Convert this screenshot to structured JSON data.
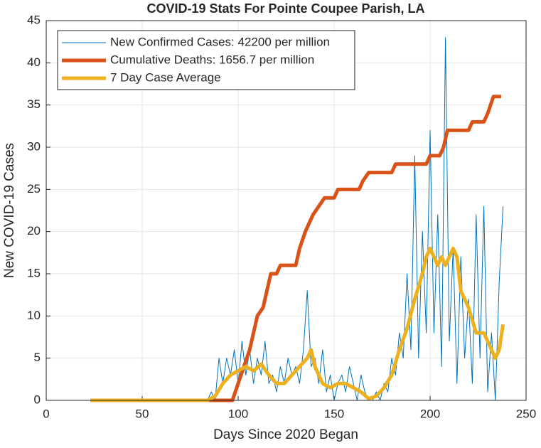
{
  "chart_data": {
    "type": "line",
    "title": "COVID-19 Stats For Pointe Coupee Parish, LA",
    "x_label": "Days Since 2020 Began",
    "y_label": "New COVID-19 Cases",
    "xlim": [
      0,
      250
    ],
    "xticks": [
      0,
      50,
      100,
      150,
      200,
      250
    ],
    "ylim": [
      0,
      45
    ],
    "yticks": [
      0,
      5,
      10,
      15,
      20,
      25,
      30,
      35,
      40,
      45
    ],
    "grid": true,
    "legend": "upper left",
    "series": [
      {
        "name": "New Confirmed Cases: 42200 per million",
        "color": "#0072bd",
        "width": 1,
        "x": [
          23,
          84,
          86,
          88,
          90,
          92,
          94,
          96,
          98,
          100,
          102,
          104,
          106,
          108,
          110,
          112,
          114,
          116,
          118,
          120,
          122,
          124,
          126,
          128,
          130,
          132,
          134,
          136,
          138,
          140,
          142,
          144,
          146,
          148,
          150,
          152,
          154,
          156,
          158,
          160,
          162,
          164,
          166,
          168,
          170,
          172,
          174,
          176,
          178,
          180,
          182,
          184,
          186,
          188,
          190,
          192,
          194,
          196,
          198,
          200,
          202,
          204,
          206,
          208,
          210,
          212,
          214,
          216,
          218,
          220,
          222,
          224,
          226,
          228,
          230,
          232,
          234,
          236,
          238
        ],
        "values": [
          0,
          0,
          1,
          0,
          5,
          2,
          5,
          3,
          6,
          2,
          7,
          3,
          6,
          2,
          5,
          3,
          7,
          2,
          3,
          1,
          4,
          2,
          5,
          3,
          4,
          2,
          6,
          13,
          4,
          5,
          2,
          6,
          1,
          3,
          0,
          2,
          3,
          1,
          4,
          2,
          0,
          3,
          1,
          0,
          0,
          1,
          0,
          2,
          1,
          5,
          3,
          8,
          5,
          15,
          6,
          29,
          5,
          20,
          8,
          32,
          8,
          22,
          4,
          43,
          7,
          18,
          2,
          17,
          5,
          12,
          2,
          22,
          5,
          23,
          1,
          8,
          0,
          14,
          23
        ]
      },
      {
        "name": "Cumulative Deaths: 1656.7 per million",
        "color": "#d95319",
        "width": 5,
        "x": [
          23,
          97,
          100,
          103,
          106,
          108,
          110,
          113,
          115,
          117,
          120,
          122,
          130,
          132,
          135,
          137,
          139,
          145,
          150,
          152,
          163,
          165,
          168,
          180,
          182,
          198,
          200,
          205,
          207,
          209,
          220,
          222,
          228,
          230,
          233,
          237
        ],
        "values": [
          0,
          0,
          2,
          4,
          6,
          8,
          10,
          11,
          13,
          15,
          15,
          16,
          16,
          18,
          20,
          21,
          22,
          24,
          24,
          25,
          25,
          26,
          27,
          27,
          28,
          28,
          29,
          29,
          30,
          32,
          32,
          33,
          33,
          34,
          36,
          36
        ]
      },
      {
        "name": "7 Day Case Average",
        "color": "#edb120",
        "width": 5,
        "x": [
          23,
          84,
          88,
          92,
          96,
          100,
          104,
          108,
          112,
          116,
          120,
          124,
          128,
          132,
          136,
          138,
          140,
          144,
          148,
          152,
          156,
          160,
          164,
          168,
          172,
          176,
          180,
          184,
          188,
          192,
          196,
          198,
          200,
          204,
          206,
          208,
          212,
          214,
          216,
          220,
          224,
          228,
          232,
          234,
          236,
          238
        ],
        "values": [
          0,
          0,
          0.5,
          2,
          3,
          3.5,
          4,
          3.5,
          4.3,
          3,
          2,
          2,
          3,
          4,
          5,
          6,
          4,
          2,
          1.5,
          2,
          2,
          1.5,
          1,
          0.2,
          0.5,
          1.5,
          3,
          6,
          8.5,
          12,
          15,
          17,
          18,
          16,
          17,
          16,
          18,
          17,
          13,
          11,
          8,
          8,
          6,
          5,
          6,
          9
        ]
      }
    ]
  }
}
